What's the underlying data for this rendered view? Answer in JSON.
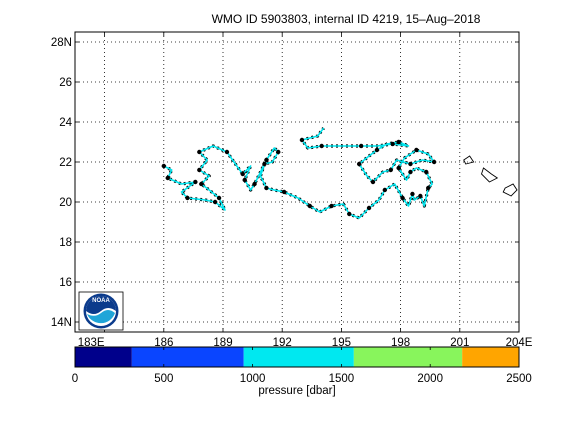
{
  "chart_data": {
    "type": "scatter",
    "title": "WMO ID 5903803, internal ID 4219, 15–Aug–2018",
    "x_axis": {
      "units": "longitude (degrees E)",
      "range": [
        181.5,
        204.0
      ],
      "ticks": [
        183,
        186,
        189,
        192,
        195,
        198,
        201,
        204
      ],
      "tick_labels": [
        "183E",
        "186",
        "189",
        "192",
        "195",
        "198",
        "201",
        "204E"
      ]
    },
    "y_axis": {
      "units": "latitude (degrees N)",
      "range": [
        13.5,
        28.5
      ],
      "ticks": [
        14,
        16,
        18,
        20,
        22,
        24,
        26,
        28
      ],
      "tick_labels": [
        "14N",
        "16",
        "18",
        "20",
        "22",
        "24",
        "26",
        "28N"
      ]
    },
    "grid": true,
    "grid_style": "dotted",
    "track_color": "#00e5ee",
    "profile_marker_color": "#000000",
    "track": [
      [
        186.0,
        21.8
      ],
      [
        186.4,
        21.6
      ],
      [
        186.2,
        21.2
      ],
      [
        186.9,
        20.9
      ],
      [
        187.6,
        21.0
      ],
      [
        186.9,
        20.5
      ],
      [
        187.2,
        20.2
      ],
      [
        188.1,
        20.1
      ],
      [
        188.6,
        20.0
      ],
      [
        189.1,
        19.6
      ],
      [
        188.8,
        20.2
      ],
      [
        188.3,
        20.6
      ],
      [
        187.9,
        20.9
      ],
      [
        188.3,
        21.3
      ],
      [
        187.8,
        21.6
      ],
      [
        188.2,
        22.1
      ],
      [
        187.8,
        22.5
      ],
      [
        188.5,
        22.8
      ],
      [
        189.2,
        22.5
      ],
      [
        189.7,
        21.8
      ],
      [
        190.0,
        21.4
      ],
      [
        190.4,
        21.8
      ],
      [
        190.1,
        21.1
      ],
      [
        190.4,
        20.6
      ],
      [
        190.6,
        20.9
      ],
      [
        190.9,
        21.5
      ],
      [
        191.2,
        22.1
      ],
      [
        191.6,
        22.7
      ],
      [
        191.8,
        22.5
      ],
      [
        191.5,
        22.0
      ],
      [
        191.1,
        21.9
      ],
      [
        190.9,
        21.3
      ],
      [
        191.2,
        20.7
      ],
      [
        191.6,
        20.6
      ],
      [
        192.1,
        20.5
      ],
      [
        192.8,
        20.2
      ],
      [
        193.4,
        19.8
      ],
      [
        193.9,
        19.5
      ],
      [
        194.5,
        19.8
      ],
      [
        195.1,
        19.9
      ],
      [
        195.4,
        19.4
      ],
      [
        195.9,
        19.2
      ],
      [
        196.4,
        19.7
      ],
      [
        196.9,
        20.1
      ],
      [
        197.2,
        20.6
      ],
      [
        197.7,
        20.9
      ],
      [
        198.1,
        20.2
      ],
      [
        198.4,
        19.8
      ],
      [
        198.6,
        20.4
      ],
      [
        198.7,
        20.1
      ],
      [
        199.0,
        20.3
      ],
      [
        199.2,
        19.8
      ],
      [
        199.4,
        20.7
      ],
      [
        199.6,
        20.9
      ],
      [
        199.3,
        21.5
      ],
      [
        198.8,
        21.7
      ],
      [
        198.5,
        21.5
      ],
      [
        198.3,
        21.1
      ],
      [
        197.9,
        21.7
      ],
      [
        198.2,
        22.2
      ],
      [
        198.8,
        22.6
      ],
      [
        199.4,
        22.4
      ],
      [
        199.7,
        22.0
      ],
      [
        199.1,
        22.1
      ],
      [
        198.5,
        21.9
      ],
      [
        197.8,
        22.1
      ],
      [
        197.5,
        21.6
      ],
      [
        197.1,
        21.5
      ],
      [
        196.6,
        21.0
      ],
      [
        196.3,
        21.3
      ],
      [
        195.9,
        21.9
      ],
      [
        196.4,
        22.3
      ],
      [
        196.8,
        22.6
      ],
      [
        197.3,
        22.9
      ],
      [
        197.9,
        23.0
      ],
      [
        198.4,
        22.8
      ],
      [
        197.6,
        22.9
      ],
      [
        196.8,
        22.8
      ],
      [
        196.0,
        22.8
      ],
      [
        195.0,
        22.8
      ],
      [
        194.0,
        22.8
      ],
      [
        193.3,
        22.7
      ],
      [
        193.0,
        23.1
      ],
      [
        193.8,
        23.3
      ],
      [
        194.1,
        23.7
      ]
    ],
    "profiles": [
      [
        186.0,
        21.8
      ],
      [
        186.2,
        21.2
      ],
      [
        187.6,
        21.0
      ],
      [
        187.2,
        20.2
      ],
      [
        188.6,
        20.0
      ],
      [
        188.8,
        20.2
      ],
      [
        187.9,
        20.9
      ],
      [
        187.8,
        21.6
      ],
      [
        187.8,
        22.5
      ],
      [
        189.2,
        22.5
      ],
      [
        190.0,
        21.4
      ],
      [
        190.1,
        21.1
      ],
      [
        190.6,
        20.9
      ],
      [
        191.2,
        22.1
      ],
      [
        191.8,
        22.5
      ],
      [
        191.1,
        21.9
      ],
      [
        191.2,
        20.7
      ],
      [
        192.1,
        20.5
      ],
      [
        193.4,
        19.8
      ],
      [
        194.5,
        19.8
      ],
      [
        195.4,
        19.4
      ],
      [
        196.4,
        19.7
      ],
      [
        197.2,
        20.6
      ],
      [
        198.1,
        20.2
      ],
      [
        198.6,
        20.4
      ],
      [
        199.0,
        20.3
      ],
      [
        199.4,
        20.7
      ],
      [
        199.3,
        21.5
      ],
      [
        198.5,
        21.5
      ],
      [
        197.9,
        21.7
      ],
      [
        198.8,
        22.6
      ],
      [
        199.7,
        22.0
      ],
      [
        198.5,
        21.9
      ],
      [
        197.5,
        21.6
      ],
      [
        196.6,
        21.0
      ],
      [
        195.9,
        21.9
      ],
      [
        196.8,
        22.6
      ],
      [
        197.9,
        23.0
      ],
      [
        197.6,
        22.9
      ],
      [
        196.0,
        22.8
      ],
      [
        194.0,
        22.8
      ],
      [
        193.0,
        23.1
      ]
    ],
    "islands": [
      [
        [
          201.2,
          22.1
        ],
        [
          201.5,
          22.3
        ],
        [
          201.7,
          22.0
        ],
        [
          201.3,
          21.9
        ]
      ],
      [
        [
          202.2,
          21.7
        ],
        [
          202.6,
          21.4
        ],
        [
          202.9,
          21.2
        ],
        [
          202.5,
          21.0
        ],
        [
          202.1,
          21.4
        ]
      ],
      [
        [
          203.3,
          20.7
        ],
        [
          203.7,
          20.9
        ],
        [
          203.9,
          20.6
        ],
        [
          203.6,
          20.3
        ],
        [
          203.2,
          20.5
        ]
      ]
    ],
    "colorbar": {
      "label": "pressure [dbar]",
      "range": [
        0,
        2500
      ],
      "tick_values": [
        0,
        500,
        1000,
        1500,
        2000,
        2500
      ],
      "tick_labels": [
        "0",
        "500",
        "1000",
        "1500",
        "2000",
        "2500"
      ],
      "segments": [
        {
          "from": 0,
          "to": 320,
          "color": "#00008b"
        },
        {
          "from": 320,
          "to": 950,
          "color": "#0a45ff"
        },
        {
          "from": 950,
          "to": 1570,
          "color": "#00e8f0"
        },
        {
          "from": 1570,
          "to": 2180,
          "color": "#88f55c"
        },
        {
          "from": 2180,
          "to": 2500,
          "color": "#ffa500"
        }
      ]
    }
  },
  "logo": {
    "name": "NOAA",
    "text": "NOAA"
  }
}
